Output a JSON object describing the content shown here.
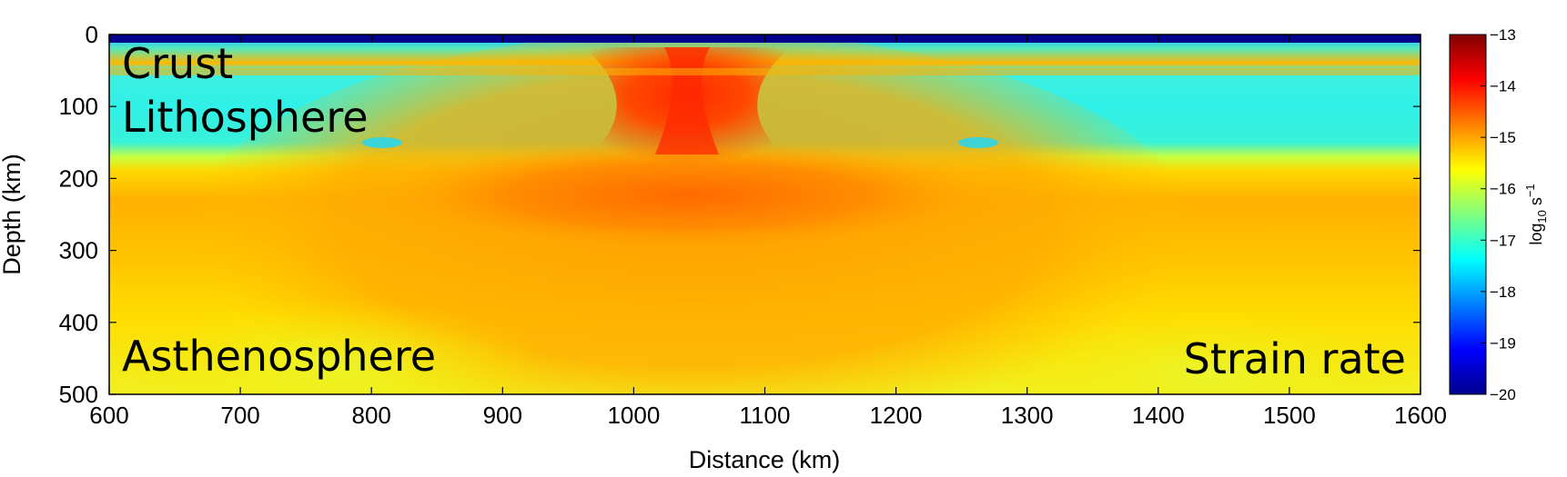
{
  "chart_data": {
    "type": "heatmap",
    "title": "",
    "xlabel": "Distance (km)",
    "ylabel": "Depth (km)",
    "xlim": [
      600,
      1600
    ],
    "ylim": [
      500,
      0
    ],
    "y_reversed": true,
    "x_ticks": [
      600,
      700,
      800,
      900,
      1000,
      1100,
      1200,
      1300,
      1400,
      1500,
      1600
    ],
    "x_tick_labels": [
      "600",
      "700",
      "800",
      "900",
      "1000",
      "1100",
      "1200",
      "1300",
      "1400",
      "1500",
      "1600"
    ],
    "y_ticks": [
      0,
      100,
      200,
      300,
      400,
      500
    ],
    "y_tick_labels": [
      "0",
      "100",
      "200",
      "300",
      "400",
      "500"
    ],
    "colormap": "jet",
    "colorbar": {
      "range": [
        -20,
        -13
      ],
      "ticks": [
        -13,
        -14,
        -15,
        -16,
        -17,
        -18,
        -19,
        -20
      ],
      "tick_labels": [
        "−13",
        "−14",
        "−15",
        "−16",
        "−17",
        "−18",
        "−19",
        "−20"
      ],
      "label_base": "log",
      "label_sub": "10",
      "label_unit": " s",
      "label_sup": "−1"
    },
    "annotations": {
      "crust": "Crust",
      "lithosphere": "Lithosphere",
      "asthenosphere": "Asthenosphere",
      "field": "Strain rate"
    },
    "field_features": [
      {
        "name": "background-asthenosphere",
        "x_range": [
          600,
          1600
        ],
        "depth_range": [
          180,
          500
        ],
        "log10_strain_rate": -15.6
      },
      {
        "name": "lithosphere-background",
        "x_range": [
          600,
          1600
        ],
        "depth_range": [
          10,
          170
        ],
        "log10_strain_rate": -17.0
      },
      {
        "name": "surface-layer",
        "x_range": [
          600,
          1600
        ],
        "depth_range": [
          0,
          8
        ],
        "log10_strain_rate": -19.5
      },
      {
        "name": "rift-center",
        "x": 1040,
        "depth": 60,
        "log10_strain_rate": -13.8
      },
      {
        "name": "crust-base-band",
        "x_range": [
          600,
          1600
        ],
        "depth": 45,
        "log10_strain_rate": -15.8
      }
    ],
    "grid": false,
    "legend": "none"
  }
}
